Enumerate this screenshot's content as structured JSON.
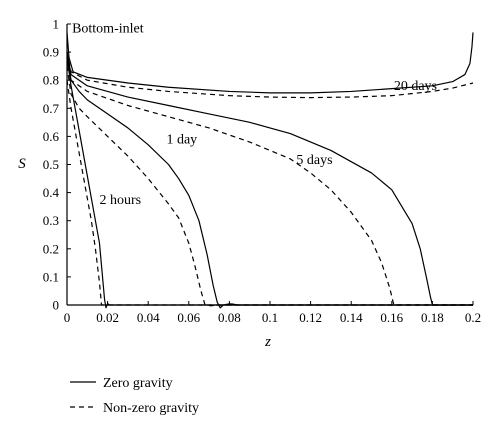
{
  "chart_data": {
    "type": "line",
    "title": "",
    "xlabel": "z",
    "ylabel": "S",
    "xlim": [
      0,
      0.2
    ],
    "ylim": [
      0,
      1
    ],
    "xticks": [
      0,
      0.02,
      0.04,
      0.06,
      0.08,
      0.1,
      0.12,
      0.14,
      0.16,
      0.18,
      0.2
    ],
    "xtick_labels": [
      "0",
      "0.02",
      "0.04",
      "0.06",
      "0.08",
      "0.1",
      "0.12",
      "0.14",
      "0.16",
      "0.18",
      "0.2"
    ],
    "yticks": [
      0,
      0.1,
      0.2,
      0.3,
      0.4,
      0.5,
      0.6,
      0.7,
      0.8,
      0.9,
      1
    ],
    "ytick_labels": [
      "0",
      "0.1",
      "0.2",
      "0.3",
      "0.4",
      "0.5",
      "0.6",
      "0.7",
      "0.8",
      "0.9",
      "1"
    ],
    "grid": false,
    "legend_position": "bottom-left",
    "legend": [
      {
        "label": "Zero gravity",
        "style": "solid"
      },
      {
        "label": "Non-zero gravity",
        "style": "dashed"
      }
    ],
    "annotations": [
      {
        "text": "Bottom-inlet",
        "x": 0.0025,
        "y": 0.97
      },
      {
        "text": "20 days",
        "x": 0.161,
        "y": 0.765
      },
      {
        "text": "1 day",
        "x": 0.049,
        "y": 0.575
      },
      {
        "text": "5 days",
        "x": 0.113,
        "y": 0.502
      },
      {
        "text": "2 hours",
        "x": 0.016,
        "y": 0.36
      }
    ],
    "series": [
      {
        "style": "solid",
        "points": [
          [
            0,
            0.97
          ],
          [
            0.001,
            0.88
          ],
          [
            0.003,
            0.83
          ],
          [
            0.01,
            0.81
          ],
          [
            0.03,
            0.79
          ],
          [
            0.05,
            0.775
          ],
          [
            0.08,
            0.76
          ],
          [
            0.1,
            0.755
          ],
          [
            0.12,
            0.755
          ],
          [
            0.14,
            0.76
          ],
          [
            0.16,
            0.77
          ],
          [
            0.18,
            0.78
          ],
          [
            0.19,
            0.795
          ],
          [
            0.196,
            0.82
          ],
          [
            0.1985,
            0.86
          ],
          [
            0.1995,
            0.92
          ],
          [
            0.2,
            0.97
          ]
        ]
      },
      {
        "style": "dashed",
        "points": [
          [
            0,
            0.9
          ],
          [
            0.002,
            0.83
          ],
          [
            0.01,
            0.8
          ],
          [
            0.03,
            0.775
          ],
          [
            0.05,
            0.76
          ],
          [
            0.08,
            0.745
          ],
          [
            0.1,
            0.74
          ],
          [
            0.12,
            0.738
          ],
          [
            0.14,
            0.74
          ],
          [
            0.16,
            0.745
          ],
          [
            0.18,
            0.76
          ],
          [
            0.19,
            0.772
          ],
          [
            0.2,
            0.79
          ]
        ]
      },
      {
        "style": "solid",
        "points": [
          [
            0,
            0.9
          ],
          [
            0.002,
            0.82
          ],
          [
            0.01,
            0.78
          ],
          [
            0.03,
            0.74
          ],
          [
            0.05,
            0.71
          ],
          [
            0.07,
            0.68
          ],
          [
            0.09,
            0.65
          ],
          [
            0.11,
            0.61
          ],
          [
            0.13,
            0.55
          ],
          [
            0.15,
            0.47
          ],
          [
            0.16,
            0.41
          ],
          [
            0.165,
            0.35
          ],
          [
            0.17,
            0.29
          ],
          [
            0.174,
            0.2
          ],
          [
            0.177,
            0.1
          ],
          [
            0.179,
            0.03
          ],
          [
            0.18,
            0.0
          ],
          [
            0.2,
            0.0
          ]
        ]
      },
      {
        "style": "dashed",
        "points": [
          [
            0,
            0.9
          ],
          [
            0.002,
            0.8
          ],
          [
            0.01,
            0.76
          ],
          [
            0.03,
            0.71
          ],
          [
            0.05,
            0.67
          ],
          [
            0.07,
            0.63
          ],
          [
            0.09,
            0.58
          ],
          [
            0.11,
            0.52
          ],
          [
            0.12,
            0.47
          ],
          [
            0.13,
            0.41
          ],
          [
            0.14,
            0.33
          ],
          [
            0.15,
            0.23
          ],
          [
            0.155,
            0.15
          ],
          [
            0.159,
            0.06
          ],
          [
            0.161,
            0.0
          ],
          [
            0.2,
            0.0
          ]
        ]
      },
      {
        "style": "solid",
        "points": [
          [
            0,
            0.9
          ],
          [
            0.002,
            0.8
          ],
          [
            0.006,
            0.76
          ],
          [
            0.01,
            0.73
          ],
          [
            0.02,
            0.68
          ],
          [
            0.03,
            0.63
          ],
          [
            0.04,
            0.57
          ],
          [
            0.05,
            0.5
          ],
          [
            0.055,
            0.45
          ],
          [
            0.06,
            0.39
          ],
          [
            0.065,
            0.3
          ],
          [
            0.069,
            0.18
          ],
          [
            0.072,
            0.07
          ],
          [
            0.074,
            0.01
          ],
          [
            0.0755,
            -0.01
          ],
          [
            0.077,
            0.0
          ],
          [
            0.08,
            0.004
          ],
          [
            0.082,
            0.003
          ],
          [
            0.084,
            0.0
          ],
          [
            0.2,
            0.0
          ]
        ]
      },
      {
        "style": "dashed",
        "points": [
          [
            0,
            0.85
          ],
          [
            0.002,
            0.75
          ],
          [
            0.006,
            0.7
          ],
          [
            0.01,
            0.67
          ],
          [
            0.02,
            0.6
          ],
          [
            0.03,
            0.53
          ],
          [
            0.04,
            0.45
          ],
          [
            0.05,
            0.36
          ],
          [
            0.055,
            0.31
          ],
          [
            0.06,
            0.22
          ],
          [
            0.063,
            0.14
          ],
          [
            0.066,
            0.05
          ],
          [
            0.068,
            0.0
          ],
          [
            0.071,
            -0.003
          ],
          [
            0.074,
            0.0
          ],
          [
            0.2,
            0.0
          ]
        ]
      },
      {
        "style": "solid",
        "points": [
          [
            0,
            0.88
          ],
          [
            0.002,
            0.78
          ],
          [
            0.004,
            0.7
          ],
          [
            0.006,
            0.62
          ],
          [
            0.008,
            0.54
          ],
          [
            0.01,
            0.46
          ],
          [
            0.012,
            0.38
          ],
          [
            0.014,
            0.3
          ],
          [
            0.016,
            0.22
          ],
          [
            0.0175,
            0.1
          ],
          [
            0.0185,
            0.02
          ],
          [
            0.0192,
            -0.01
          ],
          [
            0.02,
            0.005
          ],
          [
            0.021,
            0.0
          ],
          [
            0.2,
            0.0
          ]
        ]
      },
      {
        "style": "dashed",
        "points": [
          [
            0,
            0.8
          ],
          [
            0.002,
            0.7
          ],
          [
            0.004,
            0.62
          ],
          [
            0.006,
            0.54
          ],
          [
            0.008,
            0.46
          ],
          [
            0.01,
            0.38
          ],
          [
            0.012,
            0.3
          ],
          [
            0.014,
            0.2
          ],
          [
            0.016,
            0.08
          ],
          [
            0.017,
            0.0
          ],
          [
            0.2,
            0.0
          ]
        ]
      }
    ]
  }
}
